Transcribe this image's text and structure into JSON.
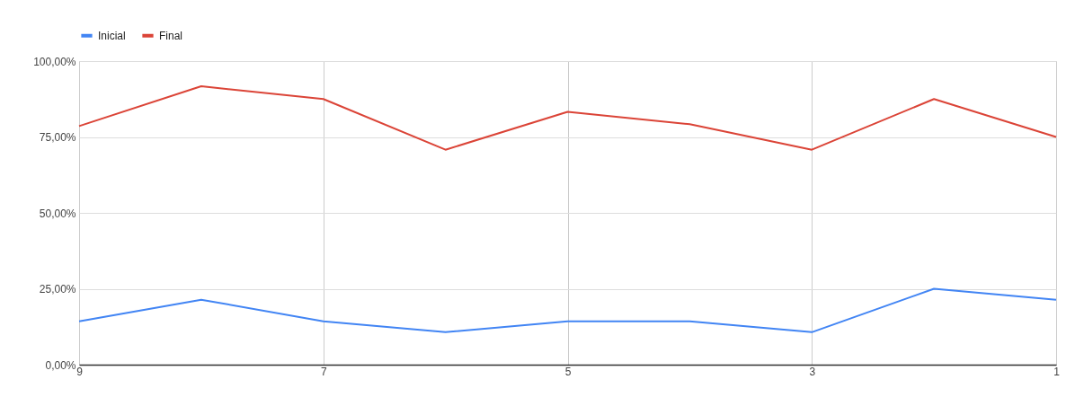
{
  "chart_data": {
    "type": "line",
    "x": [
      9,
      8,
      7,
      6,
      5,
      4,
      3,
      2,
      1
    ],
    "series": [
      {
        "name": "Inicial",
        "color": "#4285f4",
        "values": [
          14.3,
          21.4,
          14.3,
          10.7,
          14.3,
          14.3,
          10.7,
          25,
          21.4
        ]
      },
      {
        "name": "Final",
        "color": "#db4437",
        "values": [
          78.6,
          91.7,
          87.5,
          70.8,
          83.3,
          79.2,
          70.8,
          87.5,
          75
        ]
      }
    ],
    "xlim": [
      9,
      1
    ],
    "xticks": [
      9,
      7,
      5,
      3,
      1
    ],
    "ylim": [
      0,
      100
    ],
    "yticks": [
      {
        "value": 0,
        "label": "0,00%"
      },
      {
        "value": 25,
        "label": "25,00%"
      },
      {
        "value": 50,
        "label": "50,00%"
      },
      {
        "value": 75,
        "label": "75,00%"
      },
      {
        "value": 100,
        "label": "100,00%"
      }
    ],
    "grid": true,
    "legend": "top",
    "marker": "none",
    "line_style": "solid"
  }
}
